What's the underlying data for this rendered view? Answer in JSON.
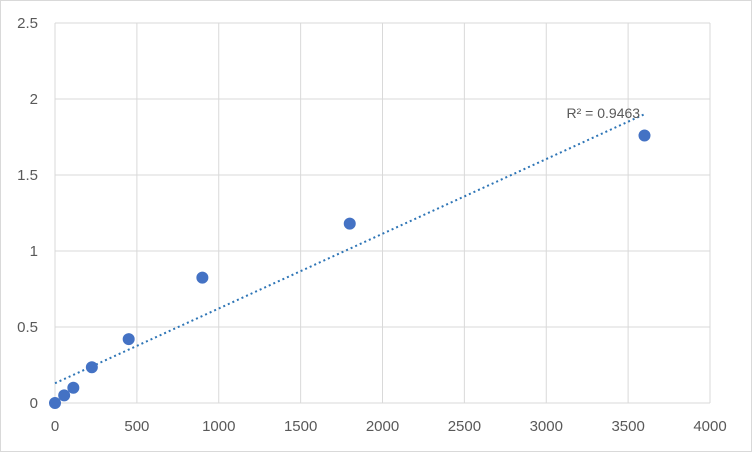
{
  "chart_data": {
    "type": "scatter",
    "title": "",
    "xlabel": "",
    "ylabel": "",
    "xlim": [
      0,
      4000
    ],
    "ylim": [
      0,
      2.5
    ],
    "x_ticks": [
      0,
      500,
      1000,
      1500,
      2000,
      2500,
      3000,
      3500,
      4000
    ],
    "y_ticks": [
      0,
      0.5,
      1,
      1.5,
      2,
      2.5
    ],
    "x_tick_labels": [
      "0",
      "500",
      "1000",
      "1500",
      "2000",
      "2500",
      "3000",
      "3500",
      "4000"
    ],
    "y_tick_labels": [
      "0",
      "0.5",
      "1",
      "1.5",
      "2",
      "2.5"
    ],
    "grid": true,
    "series": [
      {
        "color": "#4472c4",
        "points": [
          {
            "x": 0,
            "y": 0.0
          },
          {
            "x": 56,
            "y": 0.05
          },
          {
            "x": 112,
            "y": 0.1
          },
          {
            "x": 225,
            "y": 0.235
          },
          {
            "x": 450,
            "y": 0.42
          },
          {
            "x": 900,
            "y": 0.825
          },
          {
            "x": 1800,
            "y": 1.18
          },
          {
            "x": 3600,
            "y": 1.76
          }
        ]
      }
    ],
    "trendline": {
      "type": "linear",
      "color": "#2e75b6",
      "style": "dotted",
      "from": {
        "x": 0,
        "y": 0.13
      },
      "to": {
        "x": 3600,
        "y": 1.9
      },
      "label": "R² = 0.9463"
    }
  }
}
